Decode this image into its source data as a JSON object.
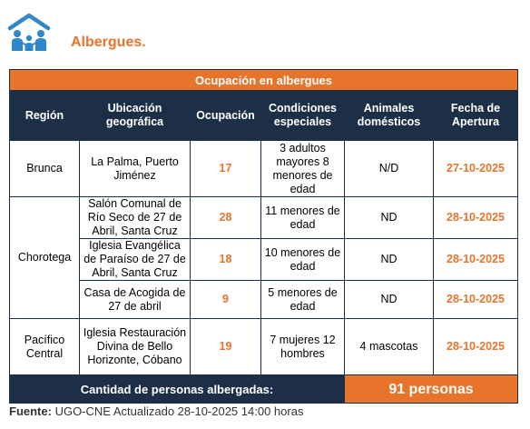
{
  "header": {
    "title": "Albergues."
  },
  "table": {
    "banner": "Ocupación en albergues",
    "columns": [
      "Región",
      "Ubicación geográfica",
      "Ocupación",
      "Condiciones especiales",
      "Animales domésticos",
      "Fecha de Apertura"
    ],
    "regions": [
      "Brunca",
      "Chorotega",
      "Pacífico Central"
    ],
    "rows": [
      {
        "location": "La Palma, Puerto Jiménez",
        "occupancy": "17",
        "conditions": "3 adultos mayores 8 menores de edad",
        "animals": "N/D",
        "date": "27-10-2025"
      },
      {
        "location": "Salón Comunal de Río Seco de 27 de Abril, Santa Cruz",
        "occupancy": "28",
        "conditions": "11 menores de edad",
        "animals": "ND",
        "date": "28-10-2025"
      },
      {
        "location": "Iglesia Evangélica de Paraíso de 27 de Abril, Santa Cruz",
        "occupancy": "18",
        "conditions": "10 menores de edad",
        "animals": "ND",
        "date": "28-10-2025"
      },
      {
        "location": "Casa de Acogida de 27 de abril",
        "occupancy": "9",
        "conditions": "5 menores de edad",
        "animals": "ND",
        "date": "28-10-2025"
      },
      {
        "location": "Iglesia Restauración Divina de Bello Horizonte, Cóbano",
        "occupancy": "19",
        "conditions": "7 mujeres 12 hombres",
        "animals": "4 mascotas",
        "date": "28-10-2025"
      }
    ],
    "total_label": "Cantidad de personas albergadas:",
    "total_value": "91 personas"
  },
  "footer": {
    "source_label": "Fuente:",
    "source_text": " UGO-CNE Actualizado 28-10-2025 14:00 horas"
  },
  "colors": {
    "accent": "#e8732a",
    "navy": "#1c2f47",
    "logo_blue": "#2f86c8"
  },
  "icons": {
    "logo": "family-shelter-icon"
  }
}
